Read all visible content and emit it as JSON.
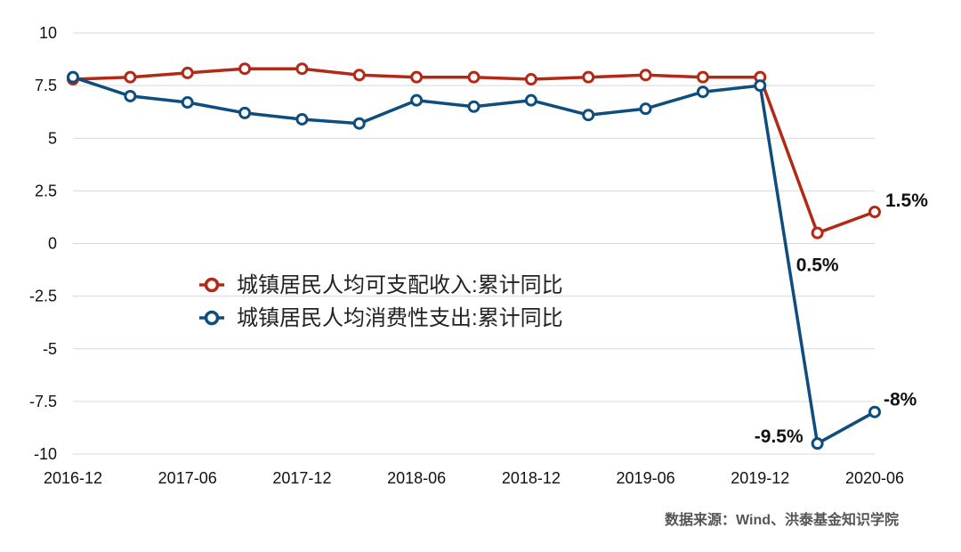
{
  "chart_data": {
    "type": "line",
    "x": [
      "2016-12",
      "2017-03",
      "2017-06",
      "2017-09",
      "2017-12",
      "2018-03",
      "2018-06",
      "2018-09",
      "2018-12",
      "2019-03",
      "2019-06",
      "2019-09",
      "2019-12",
      "2020-03",
      "2020-06"
    ],
    "x_tick_labels": [
      "2016-12",
      "2017-06",
      "2017-12",
      "2018-06",
      "2018-12",
      "2019-06",
      "2019-12",
      "2020-06"
    ],
    "y_tick_labels": [
      "10",
      "7.5",
      "5",
      "2.5",
      "0",
      "-2.5",
      "-5",
      "-7.5",
      "-10"
    ],
    "ylim": [
      -10,
      10
    ],
    "grid": true,
    "legend_position": "center-left",
    "series": [
      {
        "name": "城镇居民人均可支配收入:累计同比",
        "color": "#b22a17",
        "values": [
          7.8,
          7.9,
          8.1,
          8.3,
          8.3,
          8.0,
          7.9,
          7.9,
          7.8,
          7.9,
          8.0,
          7.9,
          7.9,
          0.5,
          1.5
        ]
      },
      {
        "name": "城镇居民人均消费性支出:累计同比",
        "color": "#0e4d7d",
        "values": [
          7.9,
          7.0,
          6.7,
          6.2,
          5.9,
          5.7,
          6.8,
          6.5,
          6.8,
          6.1,
          6.4,
          7.2,
          7.5,
          -9.5,
          -8.0
        ]
      }
    ],
    "annotations": [
      {
        "series": 0,
        "index": 13,
        "text": "0.5%"
      },
      {
        "series": 0,
        "index": 14,
        "text": "1.5%"
      },
      {
        "series": 1,
        "index": 13,
        "text": "-9.5%"
      },
      {
        "series": 1,
        "index": 14,
        "text": "-8%"
      }
    ]
  },
  "source_text": "数据来源：Wind、洪泰基金知识学院"
}
